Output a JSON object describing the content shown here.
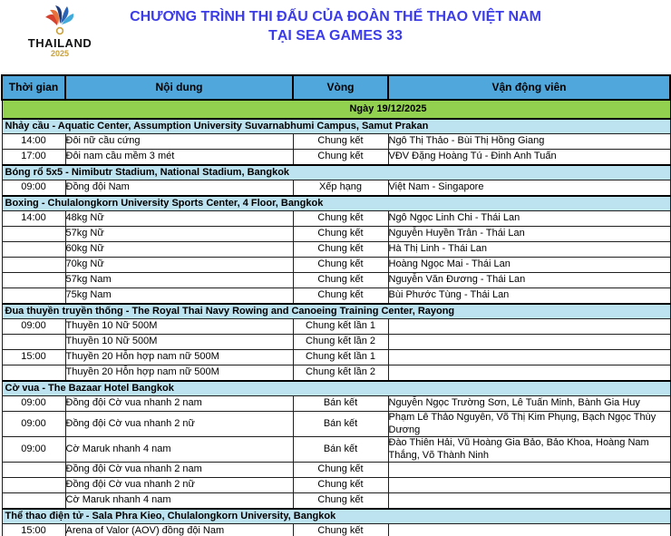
{
  "page": {
    "title_line1": "CHƯƠNG TRÌNH THI ĐẤU CỦA ĐOÀN THỂ THAO VIỆT NAM",
    "title_line2": "TẠI SEA GAMES 33",
    "logo": {
      "country": "THAILAND",
      "year": "2025"
    }
  },
  "table": {
    "columns": [
      "Thời gian",
      "Nội dung",
      "Vòng",
      "Vận động viên"
    ],
    "date_header": "Ngày 19/12/2025",
    "sections": [
      {
        "title": "Nhảy cầu - Aquatic Center, Assumption University Suvarnabhumi Campus, Samut Prakan",
        "rows": [
          {
            "time": "14:00",
            "content": "Đôi nữ cầu cứng",
            "round": "Chung kết",
            "athletes": "Ngô Thị Thảo - Bùi Thị Hồng Giang"
          },
          {
            "time": "17:00",
            "content": "Đôi nam cầu mềm 3 mét",
            "round": "Chung kết",
            "athletes": "VĐV Đặng Hoàng Tú - Đinh Anh Tuấn"
          }
        ]
      },
      {
        "title": "Bóng rổ 5x5 - Nimibutr Stadium, National Stadium, Bangkok",
        "rows": [
          {
            "time": "09:00",
            "content": "Đồng đội Nam",
            "round": "Xếp hạng",
            "athletes": "Việt Nam - Singapore"
          }
        ]
      },
      {
        "title": "Boxing - Chulalongkorn University Sports Center, 4 Floor, Bangkok",
        "rows": [
          {
            "time": "14:00",
            "content": "48kg Nữ",
            "round": "Chung kết",
            "athletes": "Ngô Ngọc Linh Chi - Thái Lan"
          },
          {
            "time": "",
            "content": "57kg Nữ",
            "round": "Chung kết",
            "athletes": "Nguyễn Huyền Trân - Thái Lan"
          },
          {
            "time": "",
            "content": "60kg Nữ",
            "round": "Chung kết",
            "athletes": "Hà Thị Linh - Thái Lan"
          },
          {
            "time": "",
            "content": "70kg Nữ",
            "round": "Chung kết",
            "athletes": "Hoàng Ngọc Mai - Thái Lan"
          },
          {
            "time": "",
            "content": "57kg Nam",
            "round": "Chung kết",
            "athletes": "Nguyễn Văn Đương - Thái Lan"
          },
          {
            "time": "",
            "content": "75kg Nam",
            "round": "Chung kết",
            "athletes": "Bùi Phước Tùng - Thái Lan"
          }
        ]
      },
      {
        "title": "Đua thuyền truyền thống - The Royal Thai Navy Rowing and Canoeing Training Center, Rayong",
        "rows": [
          {
            "time": "09:00",
            "content": "Thuyền 10 Nữ 500M",
            "round": "Chung kết lần 1",
            "athletes": ""
          },
          {
            "time": "",
            "content": "Thuyền 10 Nữ 500M",
            "round": "Chung kết lần 2",
            "athletes": ""
          },
          {
            "time": "15:00",
            "content": "Thuyền 20 Hỗn hợp nam nữ 500M",
            "round": "Chung kết lần 1",
            "athletes": ""
          },
          {
            "time": "",
            "content": "Thuyền 20 Hỗn hợp nam nữ 500M",
            "round": "Chung kết lần 2",
            "athletes": ""
          }
        ]
      },
      {
        "title": "Cờ vua - The Bazaar Hotel Bangkok",
        "rows": [
          {
            "time": "09:00",
            "content": "Đồng đội Cờ vua nhanh 2 nam",
            "round": "Bán kết",
            "athletes": "Nguyễn Ngọc Trường Sơn, Lê Tuấn Minh, Bành Gia Huy"
          },
          {
            "time": "09:00",
            "content": "Đồng đội Cờ vua nhanh 2 nữ",
            "round": "Bán kết",
            "athletes": "Phạm Lê Thảo Nguyên, Võ Thị Kim Phụng, Bạch Ngọc Thùy Dương"
          },
          {
            "time": "09:00",
            "content": "Cờ Maruk nhanh 4 nam",
            "round": "Bán kết",
            "athletes": "Đào Thiên Hải, Vũ Hoàng Gia Bảo, Bảo Khoa, Hoàng Nam Thắng, Võ Thành Ninh"
          },
          {
            "time": "",
            "content": "Đồng đội Cờ vua nhanh 2 nam",
            "round": "Chung kết",
            "athletes": ""
          },
          {
            "time": "",
            "content": "Đồng đội Cờ vua nhanh 2 nữ",
            "round": "Chung kết",
            "athletes": ""
          },
          {
            "time": "",
            "content": "Cờ Maruk nhanh 4 nam",
            "round": "Chung kết",
            "athletes": ""
          }
        ]
      },
      {
        "title": "Thể thao điện tử - Sala Phra Kieo, Chulalongkorn University, Bangkok",
        "rows": [
          {
            "time": "15:00",
            "content": "Arena of Valor (AOV) đồng đội Nam",
            "round": "Chung kết",
            "athletes": ""
          }
        ]
      }
    ]
  },
  "colors": {
    "header_bg": "#4fa7db",
    "date_bg": "#92d050",
    "section_bg": "#bde3f1",
    "title": "#3c3ce8"
  }
}
